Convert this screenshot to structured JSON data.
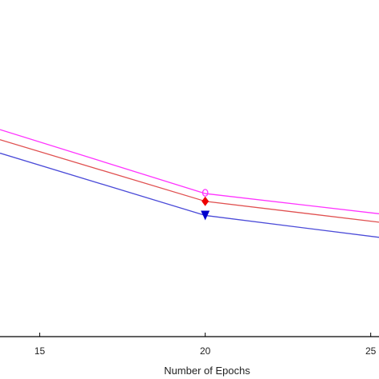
{
  "chart_data": {
    "type": "line",
    "title": "",
    "xlabel": "Number of Epochs",
    "ylabel": "",
    "x_ticks": [
      15,
      20,
      25
    ],
    "xlim": [
      13.8,
      25.25
    ],
    "ylim": [
      0,
      1
    ],
    "grid": false,
    "series": [
      {
        "x": [
          13.8,
          20,
          25.25
        ],
        "values": [
          0.615,
          0.425,
          0.365
        ],
        "color": "#ff33ff",
        "marker": "circle-open"
      },
      {
        "x": [
          13.8,
          20,
          25.25
        ],
        "values": [
          0.585,
          0.402,
          0.34
        ],
        "color": "#e05050",
        "marker": "diamond",
        "marker_color": "#ee0000"
      },
      {
        "x": [
          13.8,
          20,
          25.25
        ],
        "values": [
          0.545,
          0.36,
          0.295
        ],
        "color": "#4a4ad8",
        "marker": "triangle-down",
        "marker_color": "#0000cc"
      }
    ]
  }
}
